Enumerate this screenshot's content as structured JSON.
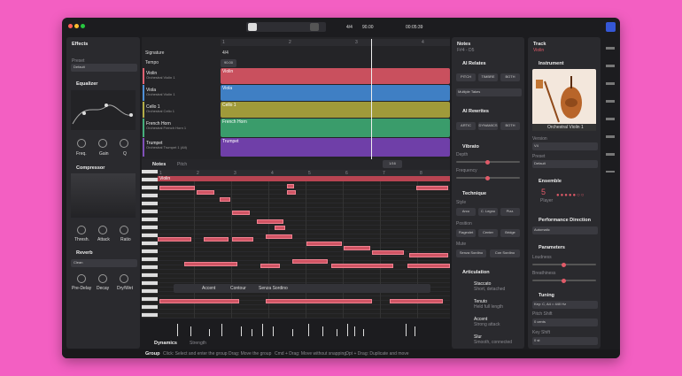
{
  "toolbar": {
    "time_signature": "4/4",
    "tempo": "90.00",
    "time": "00:05:39"
  },
  "effects": {
    "title": "Effects",
    "preset_label": "Preset",
    "preset": "Default",
    "equalizer": {
      "title": "Equalizer",
      "knobs": [
        "Freq.",
        "Gain",
        "Q"
      ]
    },
    "compressor": {
      "title": "Compressor",
      "knobs": [
        "Thresh.",
        "Attack",
        "Ratio"
      ]
    },
    "reverb": {
      "title": "Reverb",
      "preset": "Clean",
      "knobs": [
        "Pre-Delay",
        "Decay",
        "Dry/Wet"
      ]
    }
  },
  "arrangement": {
    "ruler": [
      "1",
      "2",
      "3",
      "4"
    ],
    "signature": {
      "label": "Signature",
      "value": "4/4"
    },
    "tempo": {
      "label": "Tempo",
      "value": "90.00"
    },
    "tracks": [
      {
        "name": "Violin",
        "instrument": "Orchestral Violin 1",
        "clip": "Violin"
      },
      {
        "name": "Viola",
        "instrument": "Orchestral Violin 1",
        "clip": "Viola"
      },
      {
        "name": "Cello 1",
        "instrument": "Orchestral Cello 1",
        "clip": "Cello 1"
      },
      {
        "name": "French Horn",
        "instrument": "Orchestral French Horn 1",
        "clip": "French Horn"
      },
      {
        "name": "Trumpet",
        "instrument": "Orchestral Trumpet 1 (Alt)",
        "clip": "Trumpet"
      }
    ]
  },
  "editor": {
    "tabs": [
      "Notes",
      "Pitch"
    ],
    "grid": "1/16",
    "ruler": [
      "1",
      "2",
      "3",
      "4",
      "5",
      "6",
      "7",
      "8"
    ],
    "clip": "Violin",
    "note_toolbar": [
      "Accent",
      "Contour",
      "Senza Sordino"
    ],
    "lane_tabs": [
      "Dynamics",
      "Strength"
    ]
  },
  "status": {
    "mode": "Group",
    "hints": [
      "Click: Select and enter the group",
      "Drag: Move the group",
      "Cmd + Drag: Move without snapping",
      "Opt + Drag: Duplicate and move"
    ]
  },
  "notes_panel": {
    "title": "Notes",
    "range": "F#4 - D5",
    "ai_relates": {
      "title": "AI Relates",
      "buttons": [
        "PITCH",
        "TIMBRE",
        "BOTH"
      ],
      "takes": "Multiple Takes"
    },
    "ai_rewrites": {
      "title": "AI Rewrites",
      "buttons": [
        "ARTIC",
        "DYNAMICS",
        "BOTH"
      ]
    },
    "vibrato": {
      "title": "Vibrato",
      "params": [
        "Depth",
        "Frequency"
      ]
    },
    "technique": {
      "title": "Technique",
      "style_label": "Style",
      "styles": [
        "Arco",
        "C. Legno",
        "Pizz."
      ],
      "position_label": "Position",
      "positions": [
        "Flageolet",
        "Center",
        "Bridge"
      ],
      "mute_label": "Mute",
      "mutes": [
        "Senza Sordino",
        "Con Sordino"
      ]
    },
    "articulation": {
      "title": "Articulation",
      "items": [
        {
          "name": "Staccato",
          "desc": "Short, detached"
        },
        {
          "name": "Tenuto",
          "desc": "Held full length"
        },
        {
          "name": "Accent",
          "desc": "Strong attack"
        },
        {
          "name": "Slur",
          "desc": "Smooth, connected"
        }
      ]
    }
  },
  "track_panel": {
    "title": "Track",
    "track": "Violin",
    "instrument_title": "Instrument",
    "instrument": "Orchestral Violin 1",
    "version_label": "Version",
    "version": "V4",
    "preset_label": "Preset",
    "preset": "Default",
    "ensemble_title": "Ensemble",
    "players": "5",
    "players_label": "Player",
    "direction_title": "Performance Direction",
    "direction": "Automatic",
    "parameters_title": "Parameters",
    "params": [
      "Loudness",
      "Breathiness"
    ],
    "tuning_title": "Tuning",
    "tuning": "Key: C, A4 = 440 Hz",
    "pitch_shift_label": "Pitch Shift",
    "pitch_shift": "0 cents",
    "key_shift_label": "Key Shift",
    "key_shift": "0 st"
  }
}
